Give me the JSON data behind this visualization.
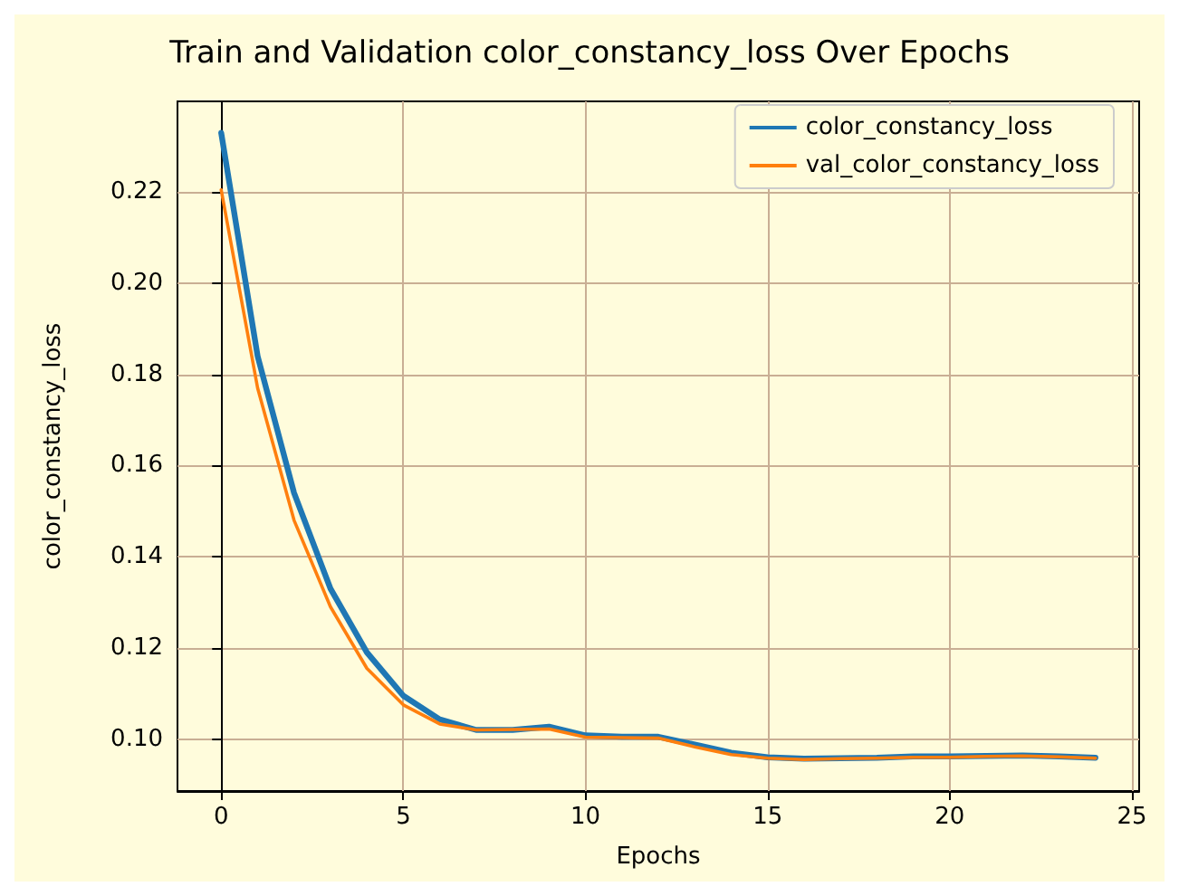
{
  "chart_data": {
    "type": "line",
    "title": "Train and Validation color_constancy_loss Over Epochs",
    "xlabel": "Epochs",
    "ylabel": "color_constancy_loss",
    "x": [
      0,
      1,
      2,
      3,
      4,
      5,
      6,
      7,
      8,
      9,
      10,
      11,
      12,
      13,
      14,
      15,
      16,
      17,
      18,
      19,
      20,
      21,
      22,
      23,
      24
    ],
    "series": [
      {
        "name": "color_constancy_loss",
        "color": "#1f77b4",
        "values": [
          0.233,
          0.184,
          0.154,
          0.133,
          0.119,
          0.1095,
          0.1043,
          0.102,
          0.102,
          0.1027,
          0.1008,
          0.1005,
          0.1005,
          0.0988,
          0.097,
          0.096,
          0.0957,
          0.0958,
          0.0959,
          0.0962,
          0.0962,
          0.0963,
          0.0964,
          0.0962,
          0.0959
        ]
      },
      {
        "name": "val_color_constancy_loss",
        "color": "#ff7f0e",
        "values": [
          0.2205,
          0.177,
          0.148,
          0.129,
          0.1155,
          0.1075,
          0.1033,
          0.102,
          0.1021,
          0.1022,
          0.1004,
          0.1003,
          0.1002,
          0.0983,
          0.0966,
          0.0958,
          0.0955,
          0.0957,
          0.0958,
          0.096,
          0.096,
          0.0962,
          0.0963,
          0.0961,
          0.0958
        ]
      }
    ],
    "xlim": [
      -1.2,
      25.2
    ],
    "xticks": [
      0,
      5,
      10,
      15,
      20,
      25
    ],
    "ylim": [
      0.0886,
      0.2399
    ],
    "yticks": [
      {
        "value": 0.1,
        "label": "0.10"
      },
      0.12,
      0.14,
      0.16,
      0.18,
      {
        "value": 0.2,
        "label": "0.20"
      },
      0.22
    ],
    "grid": true,
    "legend": "top right",
    "marker": "none",
    "line_style": "solid"
  }
}
